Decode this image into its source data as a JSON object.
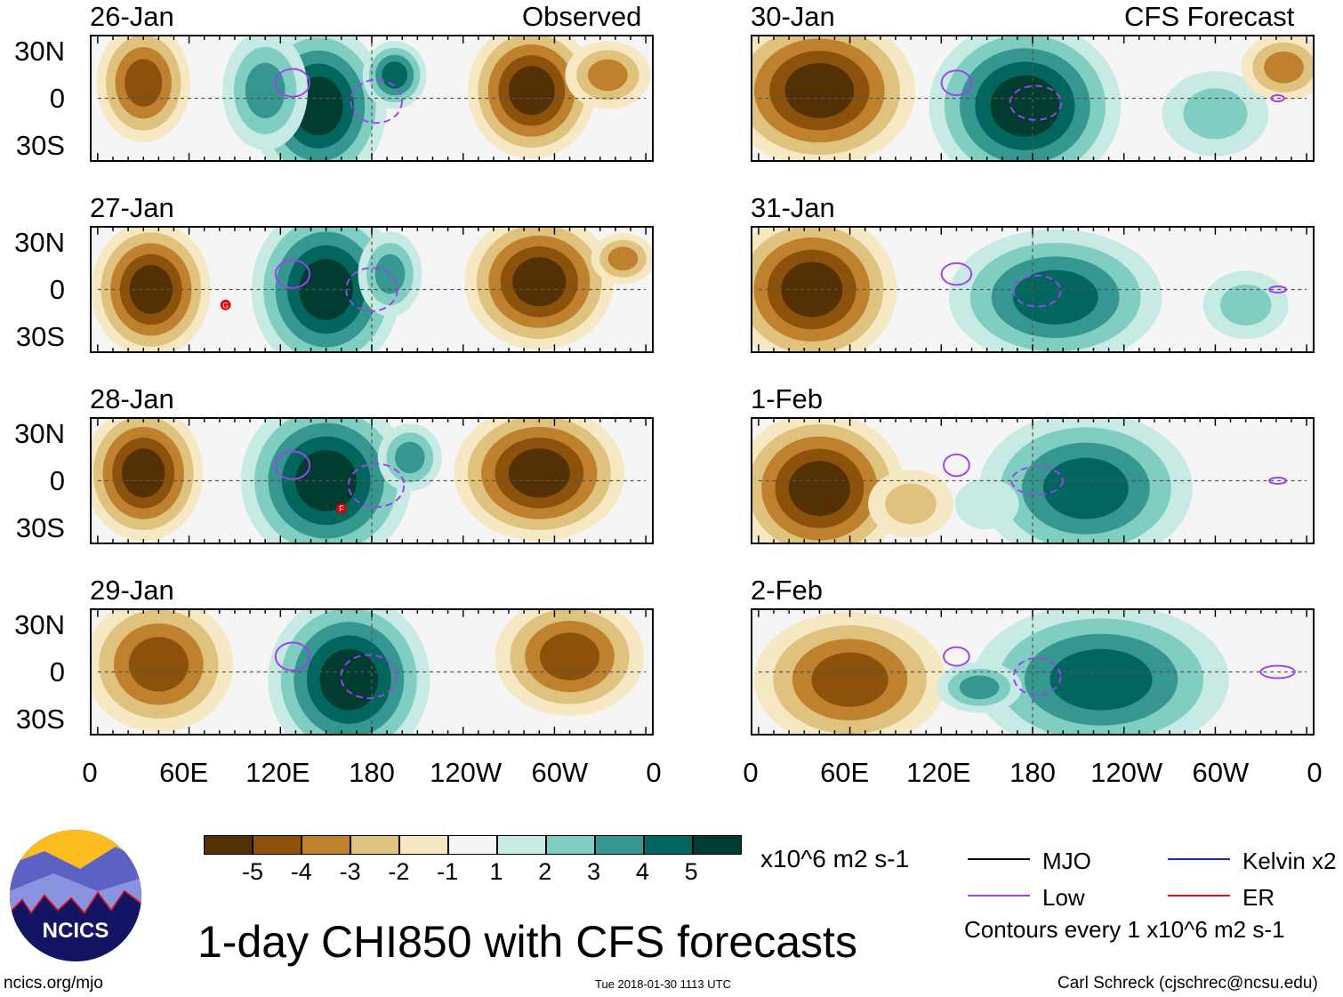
{
  "title": "1-day CHI850 with CFS forecasts",
  "footer": {
    "url": "ncics.org/mjo",
    "timestamp": "Tue 2018-01-30 1113 UTC",
    "author": "Carl Schreck (cjschrec@ncsu.edu)"
  },
  "logo": {
    "text": "NCICS"
  },
  "column_labels": {
    "observed": "Observed",
    "forecast": "CFS Forecast"
  },
  "colorbar": {
    "units": "x10^6 m2 s-1",
    "labels": [
      "-5",
      "-4",
      "-3",
      "-2",
      "-1",
      "1",
      "2",
      "3",
      "4",
      "5"
    ],
    "colors": [
      "#543005",
      "#8c510a",
      "#bf812d",
      "#dfc27d",
      "#f6e8c3",
      "#f5f5f5",
      "#c7eae5",
      "#80cdc1",
      "#35978f",
      "#01665e",
      "#003c30"
    ]
  },
  "legend": {
    "items": [
      {
        "label": "MJO",
        "color": "#000000"
      },
      {
        "label": "Kelvin x2",
        "color": "#2222dd"
      },
      {
        "label": "Low",
        "color": "#a040f0"
      },
      {
        "label": "ER",
        "color": "#dd1111"
      }
    ],
    "note": "Contours every 1 x10^6 m2 s-1"
  },
  "axes": {
    "lat_labels": [
      "30N",
      "0",
      "30S"
    ],
    "lon_labels": [
      "0",
      "60E",
      "120E",
      "180",
      "120W",
      "60W",
      "0"
    ]
  },
  "chart_data": {
    "type": "heatmap",
    "variable": "850-hPa velocity potential anomaly",
    "lon_range": [
      0,
      360
    ],
    "lat_range": [
      -40,
      40
    ],
    "panels": [
      {
        "date": "26-Jan",
        "blobs": [
          {
            "lon": 30,
            "lat": 10,
            "rl": 22,
            "rt": 35,
            "a": -4
          },
          {
            "lon": 145,
            "lat": -5,
            "rl": 32,
            "rt": 48,
            "a": 5
          },
          {
            "lon": 110,
            "lat": 5,
            "rl": 20,
            "rt": 35,
            "a": 3
          },
          {
            "lon": 195,
            "lat": 15,
            "rl": 15,
            "rt": 20,
            "a": 4
          },
          {
            "lon": 285,
            "lat": 5,
            "rl": 30,
            "rt": 40,
            "a": -5
          },
          {
            "lon": 335,
            "lat": 15,
            "rl": 20,
            "rt": 20,
            "a": -3
          }
        ],
        "low": [
          {
            "lon": 128,
            "lat": 10,
            "rl": 8,
            "rt": 9,
            "dash": false
          },
          {
            "lon": 183,
            "lat": -2,
            "rl": 12,
            "rt": 14,
            "dash": true
          }
        ],
        "tc": []
      },
      {
        "date": "27-Jan",
        "blobs": [
          {
            "lon": 35,
            "lat": 0,
            "rl": 28,
            "rt": 40,
            "a": -5
          },
          {
            "lon": 150,
            "lat": 0,
            "rl": 35,
            "rt": 50,
            "a": 5
          },
          {
            "lon": 192,
            "lat": 10,
            "rl": 15,
            "rt": 25,
            "a": 3
          },
          {
            "lon": 290,
            "lat": 5,
            "rl": 35,
            "rt": 40,
            "a": -5
          },
          {
            "lon": 345,
            "lat": 20,
            "rl": 15,
            "rt": 15,
            "a": -3
          }
        ],
        "low": [
          {
            "lon": 128,
            "lat": 10,
            "rl": 8,
            "rt": 9,
            "dash": false
          },
          {
            "lon": 180,
            "lat": 0,
            "rl": 12,
            "rt": 14,
            "dash": true
          }
        ],
        "tc": [
          {
            "lon": 84,
            "lat": -10,
            "label": "G"
          }
        ]
      },
      {
        "date": "28-Jan",
        "blobs": [
          {
            "lon": 30,
            "lat": 5,
            "rl": 28,
            "rt": 40,
            "a": -5
          },
          {
            "lon": 150,
            "lat": 0,
            "rl": 40,
            "rt": 50,
            "a": 5
          },
          {
            "lon": 205,
            "lat": 15,
            "rl": 15,
            "rt": 20,
            "a": 3
          },
          {
            "lon": 290,
            "lat": 5,
            "rl": 40,
            "rt": 40,
            "a": -5
          }
        ],
        "low": [
          {
            "lon": 128,
            "lat": 10,
            "rl": 8,
            "rt": 9,
            "dash": false
          },
          {
            "lon": 183,
            "lat": -3,
            "rl": 13,
            "rt": 14,
            "dash": true
          }
        ],
        "tc": [
          {
            "lon": 160,
            "lat": -18,
            "label": "F"
          }
        ]
      },
      {
        "date": "29-Jan",
        "blobs": [
          {
            "lon": 40,
            "lat": 5,
            "rl": 35,
            "rt": 40,
            "a": -4
          },
          {
            "lon": 165,
            "lat": -5,
            "rl": 38,
            "rt": 50,
            "a": 5
          },
          {
            "lon": 310,
            "lat": 10,
            "rl": 35,
            "rt": 35,
            "a": -4
          }
        ],
        "low": [
          {
            "lon": 128,
            "lat": 10,
            "rl": 8,
            "rt": 9,
            "dash": false
          },
          {
            "lon": 178,
            "lat": -3,
            "rl": 13,
            "rt": 14,
            "dash": true
          }
        ],
        "tc": []
      },
      {
        "date": "30-Jan",
        "blobs": [
          {
            "lon": 40,
            "lat": 5,
            "rl": 45,
            "rt": 45,
            "a": -5
          },
          {
            "lon": 175,
            "lat": -5,
            "rl": 45,
            "rt": 50,
            "a": 5
          },
          {
            "lon": 300,
            "lat": -10,
            "rl": 25,
            "rt": 25,
            "a": 2
          },
          {
            "lon": 345,
            "lat": 20,
            "rl": 20,
            "rt": 20,
            "a": -3
          }
        ],
        "low": [
          {
            "lon": 130,
            "lat": 10,
            "rl": 7,
            "rt": 8,
            "dash": false
          },
          {
            "lon": 182,
            "lat": -3,
            "rl": 12,
            "rt": 11,
            "dash": true
          },
          {
            "lon": 341,
            "lat": 0,
            "rl": 3,
            "rt": 2,
            "dash": false
          }
        ],
        "tc": []
      },
      {
        "date": "31-Jan",
        "blobs": [
          {
            "lon": 35,
            "lat": 0,
            "rl": 40,
            "rt": 45,
            "a": -5
          },
          {
            "lon": 195,
            "lat": -5,
            "rl": 50,
            "rt": 40,
            "a": 4
          },
          {
            "lon": 320,
            "lat": -10,
            "rl": 20,
            "rt": 20,
            "a": 2
          }
        ],
        "low": [
          {
            "lon": 130,
            "lat": 10,
            "rl": 7,
            "rt": 7,
            "dash": false
          },
          {
            "lon": 183,
            "lat": -1,
            "rl": 11,
            "rt": 10,
            "dash": true
          },
          {
            "lon": 341,
            "lat": 0,
            "rl": 4,
            "rt": 2,
            "dash": false
          }
        ],
        "tc": []
      },
      {
        "date": "1-Feb",
        "blobs": [
          {
            "lon": 40,
            "lat": -5,
            "rl": 40,
            "rt": 45,
            "a": -5
          },
          {
            "lon": 100,
            "lat": -15,
            "rl": 20,
            "rt": 20,
            "a": -2
          },
          {
            "lon": 215,
            "lat": -5,
            "rl": 50,
            "rt": 45,
            "a": 4
          },
          {
            "lon": 150,
            "lat": -15,
            "rl": 15,
            "rt": 15,
            "a": 1
          }
        ],
        "low": [
          {
            "lon": 130,
            "lat": 10,
            "rl": 6,
            "rt": 7,
            "dash": false
          },
          {
            "lon": 183,
            "lat": 0,
            "rl": 12,
            "rt": 9,
            "dash": true
          },
          {
            "lon": 341,
            "lat": 0,
            "rl": 4,
            "rt": 2,
            "dash": false
          }
        ],
        "tc": []
      },
      {
        "date": "2-Feb",
        "blobs": [
          {
            "lon": 60,
            "lat": -5,
            "rl": 45,
            "rt": 40,
            "a": -4
          },
          {
            "lon": 225,
            "lat": -5,
            "rl": 60,
            "rt": 45,
            "a": 4
          },
          {
            "lon": 145,
            "lat": -10,
            "rl": 20,
            "rt": 15,
            "a": 3
          }
        ],
        "low": [
          {
            "lon": 130,
            "lat": 10,
            "rl": 6,
            "rt": 6,
            "dash": false
          },
          {
            "lon": 183,
            "lat": -3,
            "rl": 11,
            "rt": 12,
            "dash": true
          },
          {
            "lon": 341,
            "lat": 0,
            "rl": 8,
            "rt": 4,
            "dash": false
          }
        ],
        "tc": []
      }
    ]
  }
}
